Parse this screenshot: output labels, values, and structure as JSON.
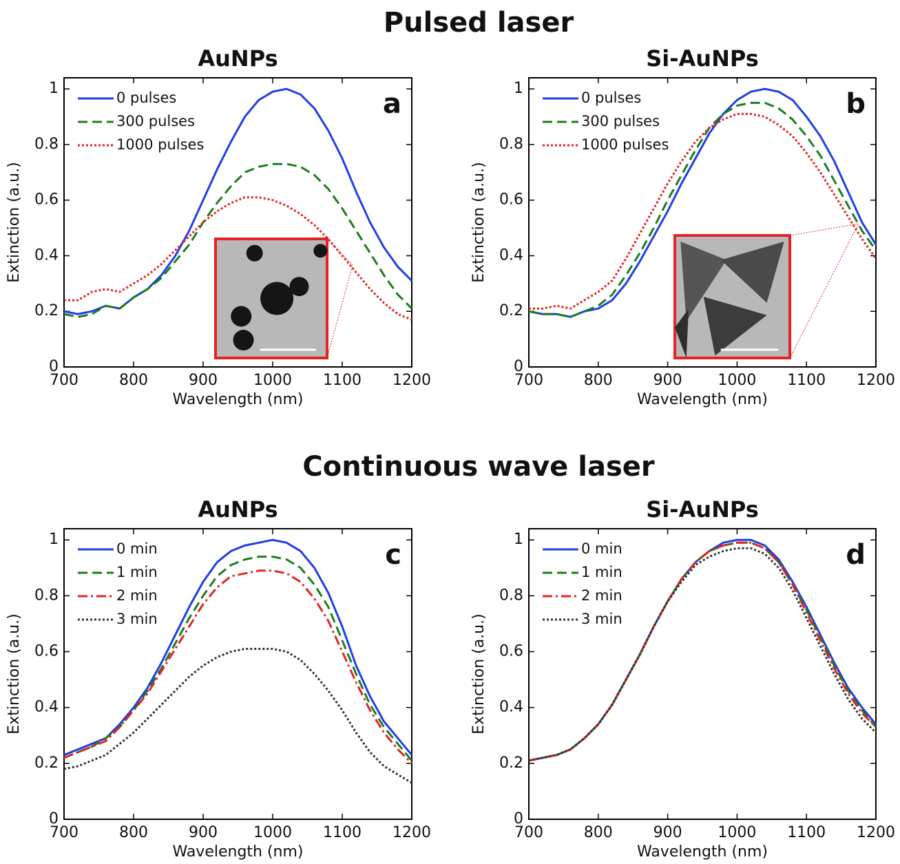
{
  "headings": [
    "Pulsed laser",
    "Continuous wave laser"
  ],
  "chart_data": [
    {
      "type": "line",
      "title": "AuNPs",
      "panel": "a",
      "xlabel": "Wavelength (nm)",
      "ylabel": "Extinction (a.u.)",
      "xlim": [
        700,
        1200
      ],
      "ylim": [
        0,
        1.04
      ],
      "xticks": [
        700,
        800,
        900,
        1000,
        1100,
        1200
      ],
      "yticks": [
        0,
        0.2,
        0.4,
        0.6,
        0.8,
        1
      ],
      "x": [
        700,
        720,
        740,
        760,
        780,
        800,
        820,
        840,
        860,
        880,
        900,
        920,
        940,
        960,
        980,
        1000,
        1020,
        1040,
        1060,
        1080,
        1100,
        1120,
        1140,
        1160,
        1180,
        1200
      ],
      "series": [
        {
          "name": "0 pulses",
          "color": "#1f3ee6",
          "style": "solid",
          "values": [
            0.2,
            0.19,
            0.2,
            0.22,
            0.21,
            0.25,
            0.28,
            0.33,
            0.4,
            0.49,
            0.6,
            0.71,
            0.81,
            0.9,
            0.96,
            0.99,
            1.0,
            0.98,
            0.93,
            0.85,
            0.75,
            0.63,
            0.52,
            0.43,
            0.36,
            0.31
          ]
        },
        {
          "name": "300 pulses",
          "color": "#1a7d1a",
          "style": "dashed",
          "values": [
            0.19,
            0.18,
            0.19,
            0.22,
            0.21,
            0.25,
            0.28,
            0.32,
            0.38,
            0.44,
            0.52,
            0.59,
            0.65,
            0.7,
            0.72,
            0.73,
            0.73,
            0.72,
            0.69,
            0.64,
            0.57,
            0.49,
            0.41,
            0.33,
            0.26,
            0.21
          ]
        },
        {
          "name": "1000 pulses",
          "color": "#e52222",
          "style": "dotted",
          "values": [
            0.24,
            0.24,
            0.27,
            0.28,
            0.27,
            0.3,
            0.33,
            0.37,
            0.42,
            0.47,
            0.52,
            0.56,
            0.59,
            0.61,
            0.61,
            0.6,
            0.58,
            0.55,
            0.51,
            0.46,
            0.4,
            0.34,
            0.28,
            0.23,
            0.19,
            0.17
          ]
        }
      ]
    },
    {
      "type": "line",
      "title": "Si-AuNPs",
      "panel": "b",
      "xlabel": "Wavelength (nm)",
      "ylabel": "Extinction (a.u.)",
      "xlim": [
        700,
        1200
      ],
      "ylim": [
        0,
        1.04
      ],
      "xticks": [
        700,
        800,
        900,
        1000,
        1100,
        1200
      ],
      "yticks": [
        0,
        0.2,
        0.4,
        0.6,
        0.8,
        1
      ],
      "x": [
        700,
        720,
        740,
        760,
        780,
        800,
        820,
        840,
        860,
        880,
        900,
        920,
        940,
        960,
        980,
        1000,
        1020,
        1040,
        1060,
        1080,
        1100,
        1120,
        1140,
        1160,
        1180,
        1200
      ],
      "series": [
        {
          "name": "0 pulses",
          "color": "#1f3ee6",
          "style": "solid",
          "values": [
            0.2,
            0.19,
            0.19,
            0.18,
            0.2,
            0.21,
            0.24,
            0.3,
            0.38,
            0.47,
            0.56,
            0.66,
            0.75,
            0.84,
            0.91,
            0.96,
            0.99,
            1.0,
            0.99,
            0.96,
            0.9,
            0.83,
            0.74,
            0.63,
            0.52,
            0.44
          ]
        },
        {
          "name": "300 pulses",
          "color": "#1a7d1a",
          "style": "dashed",
          "values": [
            0.2,
            0.19,
            0.19,
            0.18,
            0.2,
            0.22,
            0.26,
            0.33,
            0.41,
            0.5,
            0.6,
            0.69,
            0.78,
            0.86,
            0.91,
            0.94,
            0.95,
            0.95,
            0.93,
            0.89,
            0.83,
            0.76,
            0.67,
            0.58,
            0.49,
            0.42
          ]
        },
        {
          "name": "1000 pulses",
          "color": "#e52222",
          "style": "dotted",
          "values": [
            0.21,
            0.21,
            0.22,
            0.21,
            0.24,
            0.27,
            0.31,
            0.39,
            0.48,
            0.57,
            0.66,
            0.74,
            0.81,
            0.86,
            0.89,
            0.91,
            0.91,
            0.9,
            0.87,
            0.83,
            0.77,
            0.7,
            0.62,
            0.54,
            0.46,
            0.39
          ]
        }
      ]
    },
    {
      "type": "line",
      "title": "AuNPs",
      "panel": "c",
      "xlabel": "Wavelength (nm)",
      "ylabel": "Extinction (a.u.)",
      "xlim": [
        700,
        1200
      ],
      "ylim": [
        0,
        1.04
      ],
      "xticks": [
        700,
        800,
        900,
        1000,
        1100,
        1200
      ],
      "yticks": [
        0,
        0.2,
        0.4,
        0.6,
        0.8,
        1
      ],
      "x": [
        700,
        720,
        740,
        760,
        780,
        800,
        820,
        840,
        860,
        880,
        900,
        920,
        940,
        960,
        980,
        1000,
        1020,
        1040,
        1060,
        1080,
        1100,
        1120,
        1140,
        1160,
        1180,
        1200
      ],
      "series": [
        {
          "name": "0 min",
          "color": "#1f3ee6",
          "style": "solid",
          "values": [
            0.23,
            0.25,
            0.27,
            0.29,
            0.34,
            0.4,
            0.47,
            0.56,
            0.66,
            0.76,
            0.85,
            0.92,
            0.96,
            0.98,
            0.99,
            1.0,
            0.99,
            0.96,
            0.9,
            0.81,
            0.69,
            0.55,
            0.44,
            0.35,
            0.29,
            0.23
          ]
        },
        {
          "name": "1 min",
          "color": "#1a7d1a",
          "style": "dashed",
          "values": [
            0.22,
            0.24,
            0.26,
            0.29,
            0.33,
            0.39,
            0.46,
            0.54,
            0.63,
            0.72,
            0.8,
            0.87,
            0.91,
            0.93,
            0.94,
            0.94,
            0.93,
            0.9,
            0.84,
            0.76,
            0.64,
            0.52,
            0.41,
            0.33,
            0.27,
            0.21
          ]
        },
        {
          "name": "2 min",
          "color": "#e52222",
          "style": "dashdot",
          "values": [
            0.22,
            0.24,
            0.26,
            0.28,
            0.33,
            0.39,
            0.45,
            0.53,
            0.61,
            0.69,
            0.77,
            0.83,
            0.87,
            0.88,
            0.89,
            0.89,
            0.88,
            0.85,
            0.79,
            0.71,
            0.6,
            0.49,
            0.39,
            0.31,
            0.25,
            0.2
          ]
        },
        {
          "name": "3 min",
          "color": "#333333",
          "style": "dotted",
          "values": [
            0.18,
            0.19,
            0.21,
            0.23,
            0.27,
            0.31,
            0.36,
            0.41,
            0.46,
            0.51,
            0.55,
            0.58,
            0.6,
            0.61,
            0.61,
            0.61,
            0.6,
            0.57,
            0.52,
            0.46,
            0.39,
            0.31,
            0.24,
            0.19,
            0.16,
            0.13
          ]
        }
      ]
    },
    {
      "type": "line",
      "title": "Si-AuNPs",
      "panel": "d",
      "xlabel": "Wavelength (nm)",
      "ylabel": "Extinction (a.u.)",
      "xlim": [
        700,
        1200
      ],
      "ylim": [
        0,
        1.04
      ],
      "xticks": [
        700,
        800,
        900,
        1000,
        1100,
        1200
      ],
      "yticks": [
        0,
        0.2,
        0.4,
        0.6,
        0.8,
        1
      ],
      "x": [
        700,
        720,
        740,
        760,
        780,
        800,
        820,
        840,
        860,
        880,
        900,
        920,
        940,
        960,
        980,
        1000,
        1020,
        1040,
        1060,
        1080,
        1100,
        1120,
        1140,
        1160,
        1180,
        1200
      ],
      "series": [
        {
          "name": "0 min",
          "color": "#1f3ee6",
          "style": "solid",
          "values": [
            0.21,
            0.22,
            0.23,
            0.25,
            0.29,
            0.34,
            0.41,
            0.5,
            0.59,
            0.69,
            0.78,
            0.86,
            0.92,
            0.96,
            0.99,
            1.0,
            1.0,
            0.98,
            0.93,
            0.85,
            0.76,
            0.66,
            0.56,
            0.47,
            0.4,
            0.34
          ]
        },
        {
          "name": "1 min",
          "color": "#1a7d1a",
          "style": "dashed",
          "values": [
            0.21,
            0.22,
            0.23,
            0.25,
            0.29,
            0.34,
            0.41,
            0.5,
            0.59,
            0.69,
            0.78,
            0.86,
            0.92,
            0.96,
            0.98,
            0.99,
            0.99,
            0.97,
            0.92,
            0.84,
            0.75,
            0.65,
            0.55,
            0.46,
            0.39,
            0.33
          ]
        },
        {
          "name": "2 min",
          "color": "#e52222",
          "style": "dashdot",
          "values": [
            0.21,
            0.22,
            0.23,
            0.25,
            0.29,
            0.34,
            0.41,
            0.5,
            0.59,
            0.69,
            0.78,
            0.86,
            0.92,
            0.96,
            0.98,
            0.99,
            0.99,
            0.97,
            0.92,
            0.84,
            0.74,
            0.64,
            0.54,
            0.45,
            0.38,
            0.33
          ]
        },
        {
          "name": "3 min",
          "color": "#333333",
          "style": "dotted",
          "values": [
            0.21,
            0.22,
            0.23,
            0.25,
            0.29,
            0.34,
            0.41,
            0.5,
            0.59,
            0.69,
            0.78,
            0.85,
            0.91,
            0.94,
            0.96,
            0.97,
            0.97,
            0.95,
            0.9,
            0.82,
            0.72,
            0.62,
            0.52,
            0.43,
            0.36,
            0.31
          ]
        }
      ]
    }
  ]
}
